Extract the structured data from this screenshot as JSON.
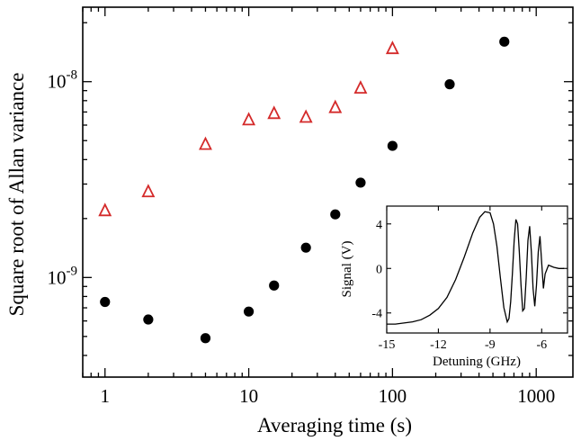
{
  "colors": {
    "series_triangle": "#d42a2a",
    "series_circle": "#000000",
    "axis": "#000000"
  },
  "chart_data": [
    {
      "type": "scatter",
      "title": "",
      "xlabel": "Averaging time (s)",
      "ylabel": "Square root of Allan variance",
      "xscale": "log",
      "yscale": "log",
      "xlim": [
        0.7,
        1800
      ],
      "ylim": [
        3.1e-10,
        2.4e-08
      ],
      "xticks": [
        {
          "value": 1,
          "label": "1"
        },
        {
          "value": 10,
          "label": "10"
        },
        {
          "value": 100,
          "label": "100"
        },
        {
          "value": 1000,
          "label": "1000"
        }
      ],
      "yticks": [
        {
          "value": 1e-09,
          "base": "10",
          "exp": "-9"
        },
        {
          "value": 1e-08,
          "base": "10",
          "exp": "-8"
        }
      ],
      "grid": false,
      "legend": "none",
      "series": [
        {
          "marker": "triangle-open",
          "color": "#d42a2a",
          "x": [
            1,
            2,
            5,
            10,
            15,
            25,
            40,
            60,
            100
          ],
          "y": [
            2.2e-09,
            2.75e-09,
            4.8e-09,
            6.4e-09,
            6.9e-09,
            6.6e-09,
            7.4e-09,
            9.3e-09,
            1.48e-08
          ]
        },
        {
          "marker": "circle-filled",
          "color": "#000000",
          "x": [
            1,
            2,
            5,
            10,
            15,
            25,
            40,
            60,
            100,
            250,
            600
          ],
          "y": [
            7.5e-10,
            6.1e-10,
            4.9e-10,
            6.7e-10,
            9.1e-10,
            1.42e-09,
            2.1e-09,
            3.05e-09,
            4.7e-09,
            9.7e-09,
            1.6e-08
          ]
        }
      ]
    },
    {
      "type": "line",
      "title": "",
      "xlabel": "Detuning (GHz)",
      "ylabel": "Signal (V)",
      "xlim": [
        -15,
        -4.5
      ],
      "ylim": [
        -5.8,
        5.6
      ],
      "xticks": [
        -15,
        -12,
        -9,
        -6
      ],
      "xtick_labels": [
        "-15",
        "-12",
        "-9",
        "-6"
      ],
      "yticks": [
        -4,
        0,
        4
      ],
      "ytick_labels": [
        "-4",
        "0",
        "4"
      ],
      "grid": false,
      "series": [
        {
          "color": "#000000",
          "x": [
            -15,
            -14.5,
            -14,
            -13.5,
            -13,
            -12.5,
            -12,
            -11.5,
            -11,
            -10.5,
            -10,
            -9.6,
            -9.3,
            -9,
            -8.8,
            -8.6,
            -8.4,
            -8.2,
            -8.0,
            -7.9,
            -7.8,
            -7.7,
            -7.6,
            -7.5,
            -7.4,
            -7.3,
            -7.2,
            -7.1,
            -7.0,
            -6.9,
            -6.8,
            -6.7,
            -6.6,
            -6.5,
            -6.4,
            -6.3,
            -6.2,
            -6.1,
            -6.0,
            -5.9,
            -5.8,
            -5.6,
            -5.3,
            -5.0,
            -4.7
          ],
          "y": [
            -5.0,
            -5.0,
            -4.9,
            -4.8,
            -4.6,
            -4.2,
            -3.6,
            -2.6,
            -1.0,
            1.0,
            3.2,
            4.6,
            5.1,
            5.0,
            4.0,
            2.0,
            -0.8,
            -3.5,
            -4.8,
            -4.5,
            -3.0,
            -0.5,
            2.5,
            4.4,
            4.0,
            1.5,
            -1.5,
            -3.8,
            -3.6,
            -0.8,
            2.5,
            3.8,
            1.5,
            -1.8,
            -3.4,
            -1.5,
            1.5,
            2.9,
            0.5,
            -1.8,
            -0.5,
            0.3,
            0.1,
            0.0,
            0.0
          ]
        }
      ]
    }
  ]
}
